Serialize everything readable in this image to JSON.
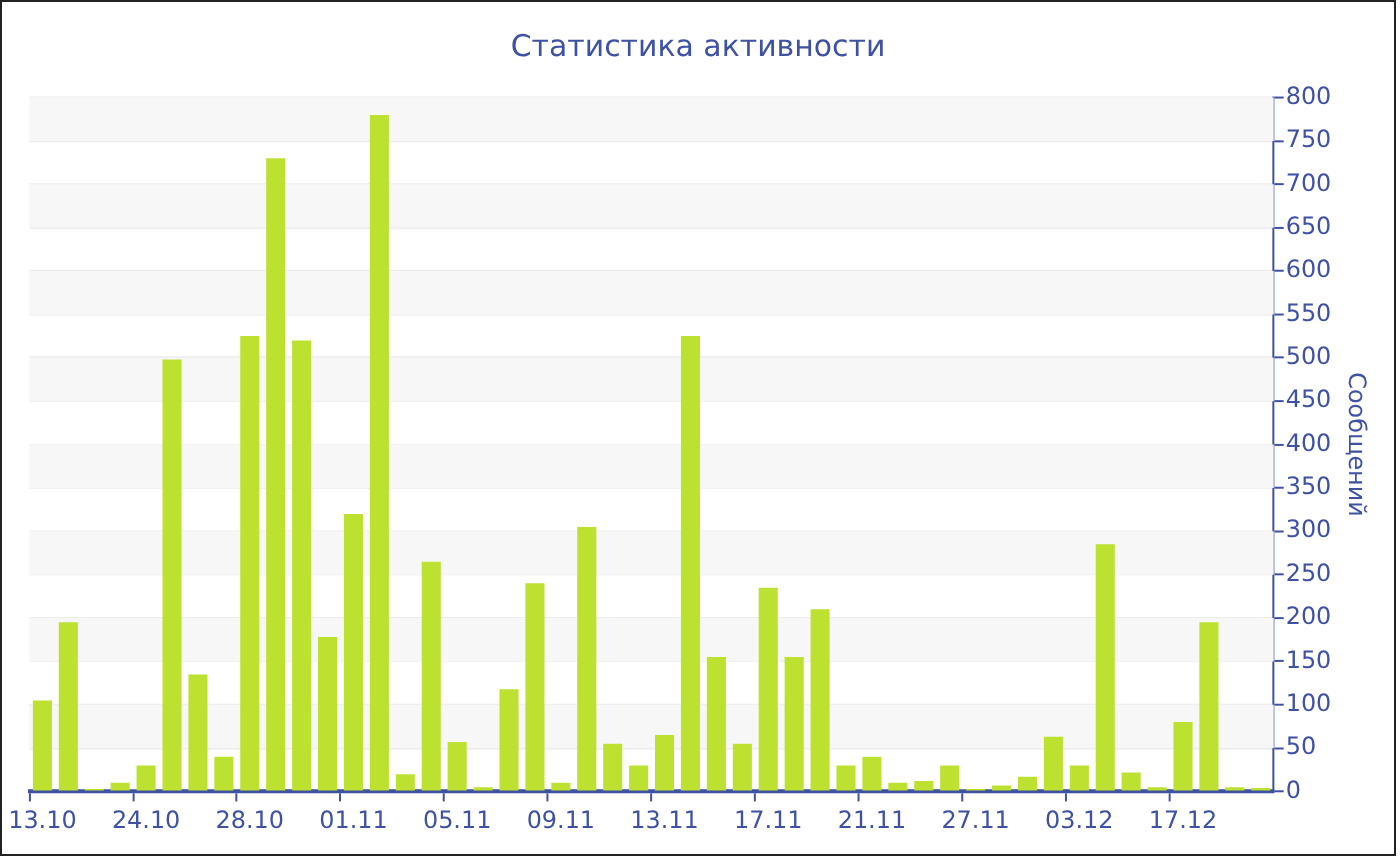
{
  "chart_data": {
    "type": "bar",
    "title": "Статистика активности",
    "ylabel": "Сообщений",
    "categories": [
      "13.10",
      null,
      null,
      null,
      "24.10",
      null,
      null,
      null,
      "28.10",
      null,
      null,
      null,
      "01.11",
      null,
      null,
      null,
      "05.11",
      null,
      null,
      null,
      "09.11",
      null,
      null,
      null,
      "13.11",
      null,
      null,
      null,
      "17.11",
      null,
      null,
      null,
      "21.11",
      null,
      null,
      null,
      "27.11",
      null,
      null,
      null,
      "03.12",
      null,
      null,
      null,
      "17.12",
      null,
      null,
      null
    ],
    "values": [
      105,
      195,
      3,
      10,
      30,
      498,
      135,
      40,
      525,
      730,
      520,
      178,
      320,
      780,
      20,
      265,
      57,
      5,
      118,
      240,
      10,
      305,
      55,
      30,
      65,
      525,
      155,
      55,
      235,
      155,
      210,
      30,
      40,
      10,
      12,
      30,
      3,
      7,
      17,
      63,
      30,
      285,
      22,
      5,
      80,
      195,
      5,
      4
    ],
    "color": "#bce130",
    "ylim": [
      0,
      800
    ],
    "yticks": [
      0,
      50,
      100,
      150,
      200,
      250,
      300,
      350,
      400,
      450,
      500,
      550,
      600,
      650,
      700,
      750,
      800
    ],
    "grid": "y"
  }
}
